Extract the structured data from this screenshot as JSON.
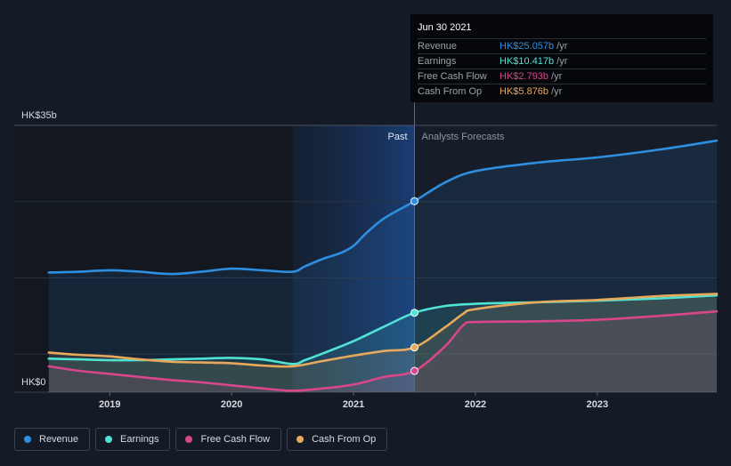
{
  "chart_data": {
    "type": "line",
    "x_range": [
      2018.45,
      2023.98
    ],
    "ylim": [
      0,
      35
    ],
    "y_top_label": "HK$35b",
    "y_bottom_label": "HK$0",
    "x_ticks": [
      2019,
      2020,
      2021,
      2022,
      2023
    ],
    "x_tick_labels": [
      "2019",
      "2020",
      "2021",
      "2022",
      "2023"
    ],
    "past_label": "Past",
    "forecast_label": "Analysts Forecasts",
    "divider_x": 2021.5,
    "past_shade_start": 2020.5,
    "series": [
      {
        "name": "Revenue",
        "key": "revenue",
        "color": "#2e8fe0",
        "points": [
          [
            2018.5,
            15.7
          ],
          [
            2018.75,
            15.8
          ],
          [
            2019.0,
            16.0
          ],
          [
            2019.25,
            15.8
          ],
          [
            2019.5,
            15.5
          ],
          [
            2019.75,
            15.8
          ],
          [
            2020.0,
            16.2
          ],
          [
            2020.25,
            16.0
          ],
          [
            2020.5,
            15.8
          ],
          [
            2020.6,
            16.5
          ],
          [
            2020.75,
            17.5
          ],
          [
            2020.9,
            18.3
          ],
          [
            2021.0,
            19.2
          ],
          [
            2021.1,
            20.8
          ],
          [
            2021.25,
            22.8
          ],
          [
            2021.5,
            25.057
          ],
          [
            2021.75,
            27.5
          ],
          [
            2022.0,
            29.0
          ],
          [
            2022.5,
            30.1
          ],
          [
            2023.0,
            30.8
          ],
          [
            2023.5,
            31.8
          ],
          [
            2023.98,
            33.0
          ]
        ]
      },
      {
        "name": "Earnings",
        "key": "earnings",
        "color": "#4fe3d4",
        "points": [
          [
            2018.5,
            4.4
          ],
          [
            2018.75,
            4.3
          ],
          [
            2019.0,
            4.2
          ],
          [
            2019.25,
            4.2
          ],
          [
            2019.5,
            4.3
          ],
          [
            2019.75,
            4.4
          ],
          [
            2020.0,
            4.5
          ],
          [
            2020.25,
            4.3
          ],
          [
            2020.5,
            3.7
          ],
          [
            2020.6,
            4.2
          ],
          [
            2020.75,
            5.1
          ],
          [
            2021.0,
            6.7
          ],
          [
            2021.25,
            8.6
          ],
          [
            2021.5,
            10.417
          ],
          [
            2021.75,
            11.3
          ],
          [
            2022.0,
            11.6
          ],
          [
            2022.5,
            11.8
          ],
          [
            2023.0,
            12.0
          ],
          [
            2023.5,
            12.3
          ],
          [
            2023.98,
            12.7
          ]
        ]
      },
      {
        "name": "Free Cash Flow",
        "key": "fcf",
        "color": "#d9478b",
        "points": [
          [
            2018.5,
            3.4
          ],
          [
            2018.75,
            2.8
          ],
          [
            2019.0,
            2.4
          ],
          [
            2019.25,
            2.0
          ],
          [
            2019.5,
            1.6
          ],
          [
            2019.75,
            1.3
          ],
          [
            2020.0,
            0.9
          ],
          [
            2020.25,
            0.5
          ],
          [
            2020.5,
            0.2
          ],
          [
            2020.75,
            0.5
          ],
          [
            2021.0,
            1.0
          ],
          [
            2021.25,
            2.0
          ],
          [
            2021.5,
            2.793
          ],
          [
            2021.75,
            6.0
          ],
          [
            2021.9,
            8.8
          ],
          [
            2022.0,
            9.2
          ],
          [
            2022.5,
            9.3
          ],
          [
            2023.0,
            9.5
          ],
          [
            2023.5,
            10.0
          ],
          [
            2023.98,
            10.6
          ]
        ]
      },
      {
        "name": "Cash From Op",
        "key": "cfo",
        "color": "#e8a95c",
        "points": [
          [
            2018.5,
            5.2
          ],
          [
            2018.75,
            4.9
          ],
          [
            2019.0,
            4.7
          ],
          [
            2019.25,
            4.3
          ],
          [
            2019.5,
            4.0
          ],
          [
            2019.75,
            3.9
          ],
          [
            2020.0,
            3.8
          ],
          [
            2020.25,
            3.5
          ],
          [
            2020.5,
            3.4
          ],
          [
            2020.75,
            4.1
          ],
          [
            2021.0,
            4.8
          ],
          [
            2021.25,
            5.4
          ],
          [
            2021.5,
            5.876
          ],
          [
            2021.75,
            8.5
          ],
          [
            2021.9,
            10.3
          ],
          [
            2022.0,
            10.9
          ],
          [
            2022.5,
            11.8
          ],
          [
            2023.0,
            12.1
          ],
          [
            2023.5,
            12.6
          ],
          [
            2023.98,
            12.9
          ]
        ]
      }
    ],
    "markers": [
      {
        "key": "revenue",
        "x": 2021.5,
        "y": 25.057
      },
      {
        "key": "earnings",
        "x": 2021.5,
        "y": 10.417
      },
      {
        "key": "cfo",
        "x": 2021.5,
        "y": 5.876
      },
      {
        "key": "fcf",
        "x": 2021.5,
        "y": 2.793
      }
    ]
  },
  "tooltip": {
    "date": "Jun 30 2021",
    "rows": [
      {
        "label": "Revenue",
        "value": "HK$25.057b",
        "unit": "/yr",
        "color": "#2e8fe0"
      },
      {
        "label": "Earnings",
        "value": "HK$10.417b",
        "unit": "/yr",
        "color": "#4fe3d4"
      },
      {
        "label": "Free Cash Flow",
        "value": "HK$2.793b",
        "unit": "/yr",
        "color": "#d9478b"
      },
      {
        "label": "Cash From Op",
        "value": "HK$5.876b",
        "unit": "/yr",
        "color": "#e8a95c"
      }
    ]
  },
  "legend": [
    {
      "label": "Revenue",
      "color": "#2e8fe0"
    },
    {
      "label": "Earnings",
      "color": "#4fe3d4"
    },
    {
      "label": "Free Cash Flow",
      "color": "#d9478b"
    },
    {
      "label": "Cash From Op",
      "color": "#e8a95c"
    }
  ]
}
